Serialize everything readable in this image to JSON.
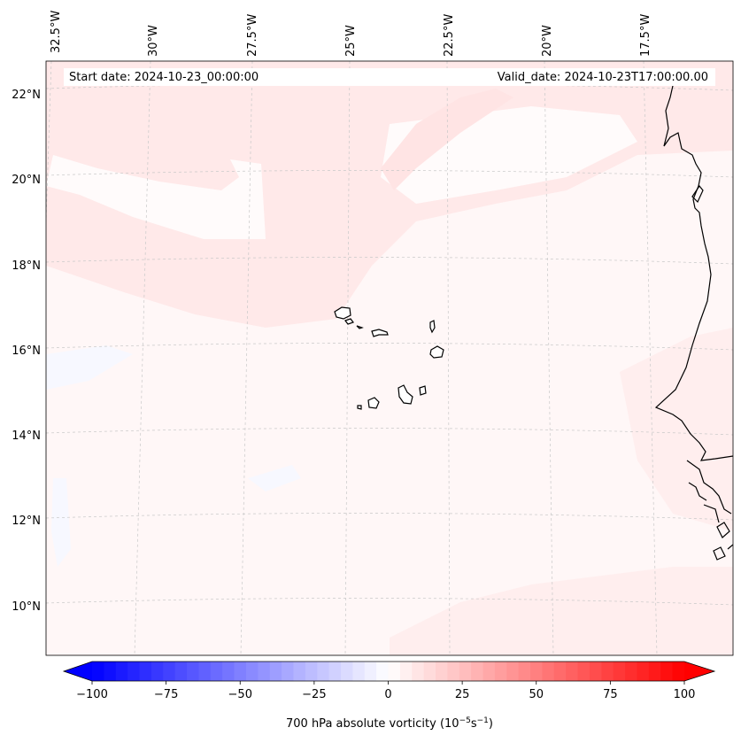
{
  "header": {
    "start_date": "Start date: 2024-10-23_00:00:00",
    "valid_date": "Valid_date: 2024-10-23T17:00:00.00"
  },
  "map": {
    "projection": "lambert-conformal",
    "lon_range": [
      -33,
      -16
    ],
    "lat_range": [
      8.8,
      22.8
    ],
    "background_field": "faint positive vorticity (pale pink) with weak zero/negative patches",
    "gridlines": "dashed light gray",
    "lon_labels": [
      {
        "lon": -32.5,
        "text": "32.5°W"
      },
      {
        "lon": -30.0,
        "text": "30°W"
      },
      {
        "lon": -27.5,
        "text": "27.5°W"
      },
      {
        "lon": -25.0,
        "text": "25°W"
      },
      {
        "lon": -22.5,
        "text": "22.5°W"
      },
      {
        "lon": -20.0,
        "text": "20°W"
      },
      {
        "lon": -17.5,
        "text": "17.5°W"
      }
    ],
    "lat_labels": [
      {
        "lat": 22,
        "text": "22°N"
      },
      {
        "lat": 20,
        "text": "20°N"
      },
      {
        "lat": 18,
        "text": "18°N"
      },
      {
        "lat": 16,
        "text": "16°N"
      },
      {
        "lat": 14,
        "text": "14°N"
      },
      {
        "lat": 12,
        "text": "12°N"
      },
      {
        "lat": 10,
        "text": "10°N"
      }
    ],
    "features": [
      "cape-verde-islands",
      "west-africa-coastline"
    ],
    "colors": {
      "field_base": "#fff7f7",
      "field_pink": "#ffe9e9",
      "field_white": "#fffcfc",
      "field_blue": "#f6f8ff",
      "coastline": "#000000",
      "grid": "#c8c8c8"
    }
  },
  "colorbar": {
    "label_prefix": "700 hPa absolute vorticity (10",
    "label_exp1": "−5",
    "label_mid": "s",
    "label_exp2": "−1",
    "label_suffix": ")",
    "min": -100,
    "max": 100,
    "levels": 50,
    "extend": "both",
    "cmap": "bwr",
    "ticks": [
      {
        "value": -100,
        "text": "−100"
      },
      {
        "value": -75,
        "text": "−75"
      },
      {
        "value": -50,
        "text": "−50"
      },
      {
        "value": -25,
        "text": "−25"
      },
      {
        "value": 0,
        "text": "0"
      },
      {
        "value": 25,
        "text": "25"
      },
      {
        "value": 50,
        "text": "50"
      },
      {
        "value": 75,
        "text": "75"
      },
      {
        "value": 100,
        "text": "100"
      }
    ]
  }
}
